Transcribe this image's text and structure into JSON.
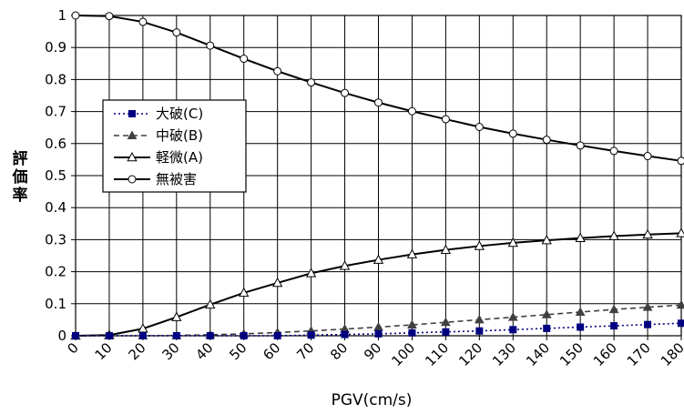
{
  "chart_data": {
    "type": "line",
    "title": "",
    "xlabel": "PGV(cm/s)",
    "ylabel": "評価率",
    "xlim": [
      0,
      180
    ],
    "ylim": [
      0,
      1
    ],
    "x_ticks": [
      "0",
      "10",
      "20",
      "30",
      "40",
      "50",
      "60",
      "70",
      "80",
      "90",
      "100",
      "110",
      "120",
      "130",
      "140",
      "150",
      "160",
      "170",
      "180"
    ],
    "y_ticks": [
      "0",
      "0.1",
      "0.2",
      "0.3",
      "0.4",
      "0.5",
      "0.6",
      "0.7",
      "0.8",
      "0.9",
      "1"
    ],
    "grid": true,
    "legend_position": "left-center",
    "series": [
      {
        "name": "大破(C)",
        "style": "dotted",
        "marker": "square-filled",
        "color": "#000080",
        "x": [
          0,
          10,
          20,
          30,
          40,
          50,
          60,
          70,
          80,
          90,
          100,
          110,
          120,
          130,
          140,
          150,
          160,
          170,
          180
        ],
        "values": [
          0,
          0,
          0,
          0,
          0,
          0,
          0,
          0.002,
          0.004,
          0.006,
          0.009,
          0.012,
          0.015,
          0.019,
          0.023,
          0.027,
          0.031,
          0.035,
          0.039
        ]
      },
      {
        "name": "中破(B)",
        "style": "dashed",
        "marker": "triangle-filled",
        "color": "#404040",
        "x": [
          0,
          10,
          20,
          30,
          40,
          50,
          60,
          70,
          80,
          90,
          100,
          110,
          120,
          130,
          140,
          150,
          160,
          170,
          180
        ],
        "values": [
          0,
          0,
          0,
          0.001,
          0.003,
          0.006,
          0.01,
          0.015,
          0.021,
          0.027,
          0.034,
          0.042,
          0.05,
          0.058,
          0.066,
          0.074,
          0.082,
          0.089,
          0.096
        ]
      },
      {
        "name": "軽微(A)",
        "style": "solid",
        "marker": "triangle-open",
        "color": "#000000",
        "x": [
          0,
          10,
          20,
          30,
          40,
          50,
          60,
          70,
          80,
          90,
          100,
          110,
          120,
          130,
          140,
          150,
          160,
          170,
          180
        ],
        "values": [
          0,
          0.002,
          0.022,
          0.058,
          0.097,
          0.134,
          0.165,
          0.195,
          0.218,
          0.237,
          0.254,
          0.268,
          0.28,
          0.29,
          0.298,
          0.305,
          0.311,
          0.316,
          0.32
        ]
      },
      {
        "name": "無被害",
        "style": "solid",
        "marker": "circle-open",
        "color": "#000000",
        "x": [
          0,
          10,
          20,
          30,
          40,
          50,
          60,
          70,
          80,
          90,
          100,
          110,
          120,
          130,
          140,
          150,
          160,
          170,
          180
        ],
        "values": [
          1,
          0.998,
          0.98,
          0.947,
          0.906,
          0.865,
          0.826,
          0.791,
          0.758,
          0.728,
          0.701,
          0.676,
          0.652,
          0.631,
          0.612,
          0.594,
          0.577,
          0.561,
          0.546
        ]
      }
    ]
  }
}
